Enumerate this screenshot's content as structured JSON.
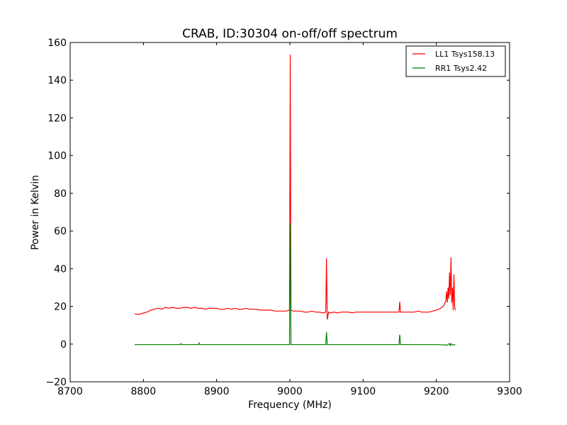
{
  "chart_data": {
    "type": "line",
    "title": "CRAB, ID:30304 on-off/off spectrum",
    "xlabel": "Frequency (MHz)",
    "ylabel": "Power in Kelvin",
    "xlim": [
      8700,
      9300
    ],
    "ylim": [
      -20,
      160
    ],
    "xticks": [
      8700,
      8800,
      8900,
      9000,
      9100,
      9200,
      9300
    ],
    "yticks": [
      -20,
      0,
      20,
      40,
      60,
      80,
      100,
      120,
      140,
      160
    ],
    "grid": false,
    "legend": {
      "position": "top-right"
    },
    "series": [
      {
        "name": "LL1 Tsys158.13",
        "color": "#ff0000",
        "x": [
          8788,
          8795,
          8800,
          8805,
          8810,
          8815,
          8820,
          8825,
          8830,
          8835,
          8840,
          8845,
          8850,
          8855,
          8860,
          8865,
          8870,
          8875,
          8880,
          8885,
          8890,
          8895,
          8900,
          8905,
          8910,
          8915,
          8920,
          8925,
          8930,
          8935,
          8940,
          8945,
          8950,
          8955,
          8960,
          8965,
          8970,
          8975,
          8980,
          8985,
          8990,
          8995,
          8999.5,
          9000.5,
          9001.5,
          9005,
          9010,
          9015,
          9020,
          9025,
          9030,
          9035,
          9040,
          9045,
          9049,
          9050,
          9051,
          9053,
          9055,
          9060,
          9065,
          9070,
          9075,
          9080,
          9085,
          9090,
          9095,
          9100,
          9105,
          9110,
          9115,
          9120,
          9125,
          9130,
          9135,
          9140,
          9145,
          9149,
          9150,
          9151,
          9155,
          9160,
          9165,
          9170,
          9175,
          9180,
          9185,
          9190,
          9195,
          9200,
          9203,
          9206,
          9209,
          9211,
          9213,
          9214,
          9215,
          9216,
          9217,
          9218,
          9219,
          9220,
          9221,
          9222,
          9223,
          9224,
          9225,
          9226
        ],
        "y": [
          16,
          15.8,
          16.5,
          17,
          18,
          18.5,
          19,
          18.5,
          19.5,
          19,
          19.5,
          19,
          19,
          19.5,
          19.5,
          19,
          19.5,
          19,
          19,
          18.5,
          19,
          19,
          19,
          18.5,
          18.5,
          19,
          18.5,
          19,
          18.5,
          18.5,
          19,
          18.5,
          18.5,
          18.5,
          18,
          18,
          18,
          18,
          17.5,
          17.5,
          17.5,
          17.5,
          18,
          153.5,
          18,
          17.5,
          17.5,
          17.5,
          17,
          17,
          17.5,
          17,
          17,
          16.5,
          17,
          45.5,
          13,
          17,
          16.5,
          17,
          16.5,
          17,
          17,
          17,
          16.5,
          17,
          17,
          17,
          17,
          17,
          17,
          17,
          17,
          17,
          17,
          17,
          17,
          17,
          22.5,
          17,
          17,
          17,
          17,
          17,
          17.5,
          17,
          17,
          17,
          17.5,
          18,
          18.5,
          19,
          20,
          21,
          23,
          28,
          22,
          30,
          24,
          38,
          26,
          46,
          22,
          30,
          18,
          37,
          20,
          18
        ]
      },
      {
        "name": "RR1 Tsys2.42",
        "color": "#008000",
        "x": [
          8788,
          8850,
          8851,
          8852,
          8875,
          8876,
          8877,
          8900,
          8950,
          8999.5,
          9000.5,
          9001.5,
          9049,
          9050,
          9051,
          9100,
          9149,
          9150,
          9151,
          9200,
          9215,
          9218,
          9219,
          9220,
          9222,
          9226
        ],
        "y": [
          -0.3,
          -0.3,
          0.3,
          -0.3,
          -0.3,
          0.6,
          -0.3,
          -0.3,
          -0.3,
          -0.3,
          64,
          -0.3,
          -0.3,
          6.5,
          -0.3,
          -0.3,
          -0.3,
          5,
          -0.3,
          -0.3,
          -0.5,
          0.3,
          -0.8,
          0.2,
          -0.5,
          -0.3
        ]
      }
    ]
  }
}
